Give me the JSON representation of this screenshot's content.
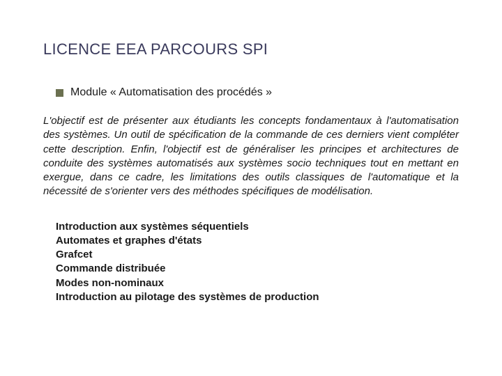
{
  "colors": {
    "title": "#3a3a5c",
    "bullet": "#6b7050",
    "text": "#1a1a1a",
    "background": "#ffffff"
  },
  "typography": {
    "title_fontsize": 22,
    "module_fontsize": 16,
    "body_fontsize": 15,
    "topic_fontsize": 15,
    "topic_fontweight": 700,
    "body_fontstyle": "italic"
  },
  "title": "LICENCE EEA PARCOURS SPI",
  "module": {
    "label": "Module « Automatisation des procédés »"
  },
  "paragraph": "L'objectif est de présenter aux étudiants les concepts fondamentaux à l'automatisation des systèmes. Un outil de spécification de la commande de ces derniers vient compléter cette description. Enfin, l'objectif est de généraliser les principes  et architectures de conduite des systèmes automatisés aux systèmes socio techniques tout en mettant en exergue, dans ce cadre, les limitations des outils classiques de l'automatique et la nécessité de s'orienter vers des méthodes spécifiques de modélisation.",
  "topics": [
    "Introduction aux systèmes séquentiels",
    "Automates et graphes d'états",
    "Grafcet",
    "Commande distribuée",
    "Modes non-nominaux",
    "Introduction au pilotage des systèmes de production"
  ]
}
